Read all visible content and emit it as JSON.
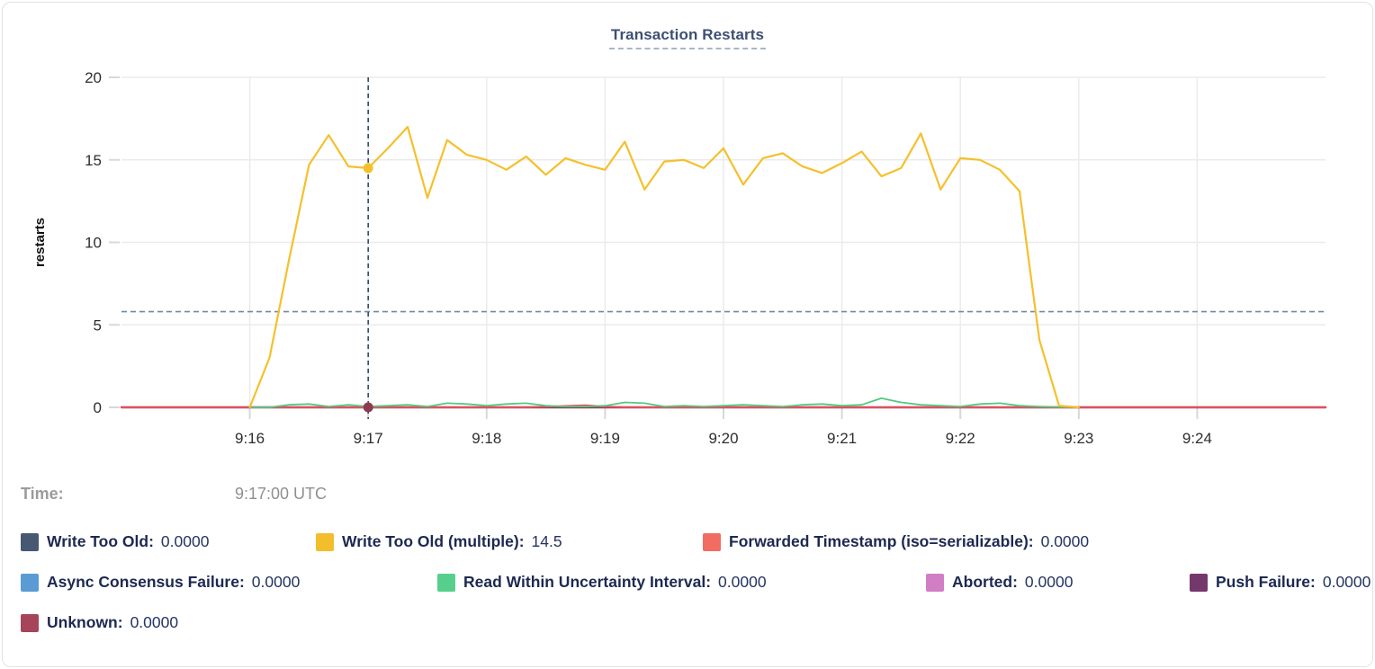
{
  "header": {
    "title": "Transaction Restarts"
  },
  "time_row": {
    "label": "Time:",
    "value": "9:17:00 UTC"
  },
  "legend": {
    "rows": [
      {
        "items": [
          {
            "label": "Write Too Old:",
            "value": "0.0000",
            "color": "#475872"
          },
          {
            "label": "Write Too Old (multiple):",
            "value": "14.5",
            "color": "#f2be2c"
          },
          {
            "label": "Forwarded Timestamp (iso=serializable):",
            "value": "0.0000",
            "color": "#f16d62"
          }
        ]
      },
      {
        "items": [
          {
            "label": "Async Consensus Failure:",
            "value": "0.0000",
            "color": "#5b9bd3"
          },
          {
            "label": "Read Within Uncertainty Interval:",
            "value": "0.0000",
            "color": "#57cf8c"
          },
          {
            "label": "Aborted:",
            "value": "0.0000",
            "color": "#d17ec5"
          },
          {
            "label": "Push Failure:",
            "value": "0.0000",
            "color": "#74386d"
          }
        ]
      },
      {
        "items": [
          {
            "label": "Unknown:",
            "value": "0.0000",
            "color": "#a5445a"
          }
        ]
      }
    ]
  },
  "chart_data": {
    "type": "line",
    "title": "Transaction Restarts",
    "ylabel": "restarts",
    "ylim": [
      0,
      20
    ],
    "yticks": [
      0,
      5,
      10,
      15,
      20
    ],
    "x_domain_seconds_after_9am": [
      895,
      1505
    ],
    "xticks": [
      {
        "label": "9:16",
        "t": 960
      },
      {
        "label": "9:17",
        "t": 1020
      },
      {
        "label": "9:18",
        "t": 1080
      },
      {
        "label": "9:19",
        "t": 1140
      },
      {
        "label": "9:20",
        "t": 1200
      },
      {
        "label": "9:21",
        "t": 1260
      },
      {
        "label": "9:22",
        "t": 1320
      },
      {
        "label": "9:23",
        "t": 1380
      },
      {
        "label": "9:24",
        "t": 1440
      }
    ],
    "grid": true,
    "legend_position": "bottom",
    "avg_dashed_line_value": 5.8,
    "crosshair": {
      "t": 1020,
      "time_label": "9:17:00 UTC",
      "highlight": [
        {
          "series": "Write Too Old (multiple)",
          "value": 14.5,
          "dot_color": "#f5c02c"
        },
        {
          "series": "Unknown",
          "value": 0,
          "dot_color": "#8d3a52"
        }
      ]
    },
    "series": [
      {
        "name": "Write Too Old",
        "color": "#475872",
        "width": 1.6,
        "value_at_cursor": 0,
        "points": [
          [
            895,
            0
          ],
          [
            1505,
            0
          ]
        ]
      },
      {
        "name": "Async Consensus Failure",
        "color": "#5b9bd3",
        "width": 1.6,
        "value_at_cursor": 0,
        "points": [
          [
            895,
            0
          ],
          [
            1505,
            0
          ]
        ]
      },
      {
        "name": "Aborted",
        "color": "#d17ec5",
        "width": 1.6,
        "value_at_cursor": 0,
        "points": [
          [
            895,
            0
          ],
          [
            1505,
            0
          ]
        ]
      },
      {
        "name": "Push Failure",
        "color": "#74386d",
        "width": 1.6,
        "value_at_cursor": 0,
        "points": [
          [
            895,
            0
          ],
          [
            1505,
            0
          ]
        ]
      },
      {
        "name": "Unknown",
        "color": "#963c52",
        "width": 2.4,
        "value_at_cursor": 0,
        "points": [
          [
            895,
            0
          ],
          [
            1505,
            0
          ]
        ]
      },
      {
        "name": "Forwarded Timestamp (iso=serializable)",
        "color": "#e0505c",
        "width": 2,
        "value_at_cursor": 0,
        "points": [
          [
            895,
            0
          ],
          [
            1100,
            0
          ],
          [
            1110,
            0.04
          ],
          [
            1120,
            0.08
          ],
          [
            1130,
            0.12
          ],
          [
            1140,
            0.05
          ],
          [
            1150,
            0
          ],
          [
            1505,
            0
          ]
        ]
      },
      {
        "name": "Read Within Uncertainty Interval",
        "color": "#55c882",
        "width": 1.8,
        "value_at_cursor": 0,
        "t0": 960,
        "dt": 10,
        "values": [
          0,
          0,
          0.15,
          0.2,
          0.05,
          0.15,
          0.05,
          0.1,
          0.15,
          0.05,
          0.25,
          0.2,
          0.1,
          0.2,
          0.25,
          0.1,
          0.05,
          0.05,
          0.1,
          0.3,
          0.25,
          0.05,
          0.1,
          0.05,
          0.1,
          0.15,
          0.1,
          0.05,
          0.15,
          0.2,
          0.1,
          0.15,
          0.55,
          0.3,
          0.15,
          0.1,
          0.05,
          0.2,
          0.25,
          0.1,
          0.05,
          0.02,
          0
        ]
      },
      {
        "name": "Write Too Old (multiple)",
        "color": "#f5c02c",
        "width": 2.2,
        "value_at_cursor": 14.5,
        "t0": 960,
        "dt": 10,
        "values": [
          0,
          3.0,
          9.0,
          14.7,
          16.5,
          14.6,
          14.5,
          15.7,
          17.0,
          12.7,
          16.2,
          15.3,
          15.0,
          14.4,
          15.2,
          14.1,
          15.1,
          14.7,
          14.4,
          16.1,
          13.2,
          14.9,
          15.0,
          14.5,
          15.7,
          13.5,
          15.1,
          15.4,
          14.6,
          14.2,
          14.8,
          15.5,
          14.0,
          14.5,
          16.6,
          13.2,
          15.1,
          15.0,
          14.4,
          13.1,
          4.1,
          0.1,
          0
        ]
      }
    ],
    "colors": {
      "grid": "#ebebeb",
      "tick": "#d8d8d8",
      "axis_text": "#2e2e2e",
      "crosshair": "#2e4d68",
      "avg_line": "#7189a3"
    }
  }
}
